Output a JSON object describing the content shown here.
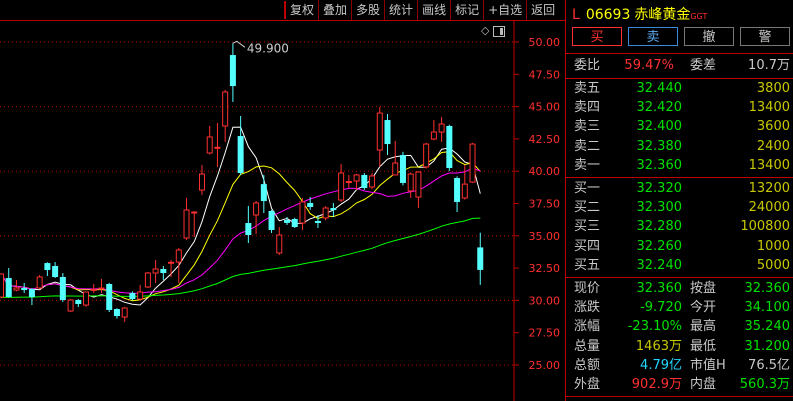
{
  "toolbar": {
    "buttons": [
      "复权",
      "叠加",
      "多股",
      "统计",
      "画线",
      "标记",
      "+自选",
      "返回"
    ]
  },
  "stock": {
    "prefix": "L",
    "code": "06693",
    "name": "赤峰黄金",
    "market_tag": "GGT"
  },
  "trade_buttons": {
    "buy": "买",
    "sell": "卖",
    "cancel": "撤",
    "alert": "警"
  },
  "ratio": {
    "label1": "委比",
    "value1": "59.47%",
    "label2": "委差",
    "value2": "10.7万"
  },
  "asks": [
    {
      "label": "卖五",
      "price": "32.440",
      "volume": "3800"
    },
    {
      "label": "卖四",
      "price": "32.420",
      "volume": "13400"
    },
    {
      "label": "卖三",
      "price": "32.400",
      "volume": "3600"
    },
    {
      "label": "卖二",
      "price": "32.380",
      "volume": "2400"
    },
    {
      "label": "卖一",
      "price": "32.360",
      "volume": "13400"
    }
  ],
  "bids": [
    {
      "label": "买一",
      "price": "32.320",
      "volume": "13200"
    },
    {
      "label": "买二",
      "price": "32.300",
      "volume": "24000"
    },
    {
      "label": "买三",
      "price": "32.280",
      "volume": "100800"
    },
    {
      "label": "买四",
      "price": "32.260",
      "volume": "1000"
    },
    {
      "label": "买五",
      "price": "32.240",
      "volume": "5000"
    }
  ],
  "quote": [
    {
      "l1": "现价",
      "v1": "32.360",
      "c1": "green",
      "l2": "按盘",
      "v2": "32.360",
      "c2": "green"
    },
    {
      "l1": "涨跌",
      "v1": "-9.720",
      "c1": "green",
      "l2": "今开",
      "v2": "34.100",
      "c2": "green"
    },
    {
      "l1": "涨幅",
      "v1": "-23.10%",
      "c1": "green",
      "l2": "最高",
      "v2": "35.240",
      "c2": "green"
    },
    {
      "l1": "总量",
      "v1": "1463万",
      "c1": "yellow",
      "l2": "最低",
      "v2": "31.200",
      "c2": "green"
    },
    {
      "l1": "总额",
      "v1": "4.79亿",
      "c1": "cyan",
      "l2": "市值H",
      "v2": "76.5亿",
      "c2": "gray"
    },
    {
      "l1": "外盘",
      "v1": "902.9万",
      "c1": "red",
      "l2": "内盘",
      "v2": "560.3万",
      "c2": "green"
    }
  ],
  "colors": {
    "up": "#ff3030",
    "down": "#54ffff",
    "ma5": "#ffffff",
    "ma10": "#ffff00",
    "ma20": "#ff00ff",
    "ma60": "#00ff00",
    "grid": "#c00000"
  },
  "chart_data": {
    "type": "candlestick",
    "ylim": [
      25,
      50
    ],
    "y_ticks": [
      "50.00",
      "47.50",
      "45.00",
      "42.50",
      "40.00",
      "37.50",
      "35.00",
      "32.50",
      "30.00",
      "27.50",
      "25.00"
    ],
    "high_annotation": "49.900",
    "moving_averages": [
      5,
      10,
      20,
      60
    ],
    "ohlc": [
      [
        30.26,
        32.1,
        30.2,
        32.04
      ],
      [
        31.73,
        32.51,
        30.2,
        30.26
      ],
      [
        30.8,
        31.58,
        30.7,
        30.96
      ],
      [
        30.96,
        31.35,
        30.57,
        30.8
      ],
      [
        30.88,
        30.96,
        29.64,
        30.26
      ],
      [
        30.96,
        31.97,
        30.88,
        31.81
      ],
      [
        32.89,
        32.95,
        31.89,
        32.35
      ],
      [
        32.66,
        32.97,
        31.73,
        31.81
      ],
      [
        31.81,
        32.12,
        29.88,
        30.03
      ],
      [
        29.18,
        30.1,
        29.1,
        30.03
      ],
      [
        30.03,
        30.1,
        29.49,
        29.72
      ],
      [
        29.64,
        30.7,
        29.5,
        30.65
      ],
      [
        30.8,
        31.27,
        30.57,
        30.85
      ],
      [
        30.88,
        31.66,
        30.57,
        30.96
      ],
      [
        31.27,
        31.35,
        29.1,
        29.26
      ],
      [
        29.33,
        29.4,
        28.6,
        28.79
      ],
      [
        28.71,
        29.5,
        28.33,
        29.41
      ],
      [
        30.57,
        30.7,
        30.0,
        30.1
      ],
      [
        30.1,
        31.19,
        30.0,
        30.65
      ],
      [
        31.04,
        32.2,
        30.96,
        32.12
      ],
      [
        32.12,
        33.13,
        31.35,
        32.43
      ],
      [
        32.43,
        32.66,
        31.58,
        32.12
      ],
      [
        32.89,
        33.13,
        31.81,
        32.95
      ],
      [
        32.97,
        34.06,
        31.35,
        33.9
      ],
      [
        34.83,
        37.93,
        34.67,
        37.0
      ],
      [
        36.8,
        36.9,
        34.91,
        36.84
      ],
      [
        38.54,
        40.48,
        38.16,
        39.78
      ],
      [
        41.41,
        43.5,
        41.3,
        42.65
      ],
      [
        41.8,
        43.73,
        40.33,
        41.85
      ],
      [
        43.5,
        46.3,
        42.26,
        46.13
      ],
      [
        48.99,
        49.9,
        45.36,
        46.59
      ],
      [
        42.72,
        44.27,
        39.7,
        39.86
      ],
      [
        35.99,
        37.31,
        34.44,
        35.06
      ],
      [
        36.61,
        37.7,
        35.14,
        37.54
      ],
      [
        39.0,
        39.71,
        36.76,
        37.69
      ],
      [
        36.92,
        37.0,
        35.22,
        35.45
      ],
      [
        33.67,
        35.68,
        33.51,
        35.06
      ],
      [
        36.22,
        36.46,
        35.84,
        36.0
      ],
      [
        36.3,
        36.4,
        35.6,
        35.68
      ],
      [
        35.99,
        37.93,
        35.45,
        37.62
      ],
      [
        37.54,
        38.0,
        37.0,
        37.23
      ],
      [
        36.15,
        36.6,
        35.6,
        35.99
      ],
      [
        36.38,
        37.3,
        36.2,
        37.15
      ],
      [
        37.15,
        37.54,
        36.46,
        36.99
      ],
      [
        37.77,
        40.56,
        37.6,
        39.86
      ],
      [
        39.16,
        39.71,
        38.7,
        39.2
      ],
      [
        39.24,
        39.8,
        38.54,
        39.71
      ],
      [
        39.71,
        39.86,
        38.54,
        38.7
      ],
      [
        38.78,
        39.86,
        38.6,
        39.63
      ],
      [
        41.64,
        44.97,
        40.33,
        44.5
      ],
      [
        43.96,
        44.43,
        41.25,
        42.1
      ],
      [
        39.71,
        42.34,
        39.7,
        40.63
      ],
      [
        41.25,
        41.5,
        38.9,
        39.09
      ],
      [
        38.47,
        39.9,
        37.93,
        39.78
      ],
      [
        38.0,
        40.0,
        37.15,
        39.94
      ],
      [
        40.33,
        42.2,
        40.2,
        42.1
      ],
      [
        42.49,
        43.96,
        42.4,
        43.03
      ],
      [
        43.03,
        44.2,
        42.26,
        43.65
      ],
      [
        43.5,
        43.6,
        40.02,
        40.25
      ],
      [
        39.47,
        39.6,
        36.84,
        37.62
      ],
      [
        37.93,
        40.48,
        37.8,
        39.0
      ],
      [
        39.16,
        42.2,
        39.09,
        42.1
      ],
      [
        34.1,
        35.24,
        31.2,
        32.36
      ]
    ]
  }
}
